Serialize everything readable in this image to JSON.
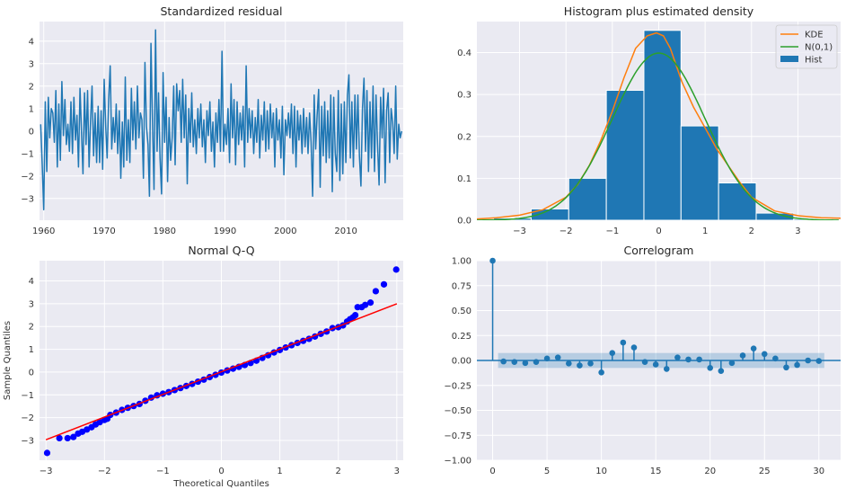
{
  "chart_data": [
    {
      "type": "line",
      "title": "Standardized residual",
      "xlabel": "",
      "ylabel": "",
      "xlim": [
        1959.3,
        2019.5
      ],
      "ylim": [
        -3.97,
        4.87
      ],
      "grid": true,
      "xticks": [
        1960,
        1970,
        1980,
        1990,
        2000,
        2010
      ],
      "xtick_labels": [
        "1960",
        "1970",
        "1980",
        "1990",
        "2000",
        "2010"
      ],
      "yticks": [
        -3,
        -2,
        -1,
        0,
        1,
        2,
        3,
        4
      ],
      "ytick_labels": [
        "−3",
        "−2",
        "−1",
        "0",
        "1",
        "2",
        "3",
        "4"
      ],
      "color": "#1f77b4",
      "quarterly_values_by_year": [
        {
          "year": 1960,
          "values": [
            0.3,
            -1.5,
            -3.5,
            1.3
          ]
        },
        {
          "year": 1961,
          "values": [
            -1.8,
            1.5,
            -0.3,
            1.0
          ]
        },
        {
          "year": 1962,
          "values": [
            0.8,
            -0.5,
            1.8,
            -1.6
          ]
        },
        {
          "year": 1963,
          "values": [
            1.2,
            -1.3,
            2.2,
            -0.2
          ]
        },
        {
          "year": 1964,
          "values": [
            1.4,
            -0.6,
            0.3,
            -0.9
          ]
        },
        {
          "year": 1965,
          "values": [
            1.3,
            -1.0,
            1.5,
            -0.4
          ]
        },
        {
          "year": 1966,
          "values": [
            0.7,
            -1.6,
            1.9,
            -0.1
          ]
        },
        {
          "year": 1967,
          "values": [
            -1.9,
            1.7,
            -0.6,
            1.8
          ]
        },
        {
          "year": 1968,
          "values": [
            -1.6,
            0.4,
            2.0,
            -1.1
          ]
        },
        {
          "year": 1969,
          "values": [
            0.8,
            -1.4,
            1.1,
            -1.4
          ]
        },
        {
          "year": 1970,
          "values": [
            0.9,
            -1.7,
            2.3,
            0.2
          ]
        },
        {
          "year": 1971,
          "values": [
            -1.2,
            1.4,
            2.9,
            -0.8
          ]
        },
        {
          "year": 1972,
          "values": [
            0.6,
            -0.5,
            1.2,
            -1.0
          ]
        },
        {
          "year": 1973,
          "values": [
            0.9,
            -2.1,
            0.4,
            -1.6
          ]
        },
        {
          "year": 1974,
          "values": [
            2.4,
            -1.3,
            0.5,
            -1.4
          ]
        },
        {
          "year": 1975,
          "values": [
            1.9,
            -0.4,
            1.3,
            -0.8
          ]
        },
        {
          "year": 1976,
          "values": [
            2.0,
            -0.3,
            0.8,
            0.5
          ]
        },
        {
          "year": 1977,
          "values": [
            -2.1,
            3.05,
            0.2,
            -0.6
          ]
        },
        {
          "year": 1978,
          "values": [
            -2.9,
            3.9,
            0.4,
            -2.6
          ]
        },
        {
          "year": 1979,
          "values": [
            4.5,
            -0.9,
            1.7,
            -1.2
          ]
        },
        {
          "year": 1980,
          "values": [
            -2.8,
            2.6,
            -0.5,
            1.5
          ]
        },
        {
          "year": 1981,
          "values": [
            -2.25,
            0.6,
            -1.3,
            -0.3
          ]
        },
        {
          "year": 1982,
          "values": [
            2.0,
            -1.5,
            2.1,
            0.9
          ]
        },
        {
          "year": 1983,
          "values": [
            1.8,
            -0.5,
            2.3,
            -0.3
          ]
        },
        {
          "year": 1984,
          "values": [
            1.6,
            -2.35,
            1.0,
            -0.5
          ]
        },
        {
          "year": 1985,
          "values": [
            1.7,
            -0.7,
            0.5,
            -1.0
          ]
        },
        {
          "year": 1986,
          "values": [
            1.0,
            -0.3,
            1.2,
            -0.7
          ]
        },
        {
          "year": 1987,
          "values": [
            0.5,
            -1.4,
            0.9,
            -0.2
          ]
        },
        {
          "year": 1988,
          "values": [
            1.3,
            -0.9,
            0.4,
            -1.6
          ]
        },
        {
          "year": 1989,
          "values": [
            0.8,
            -0.5,
            1.4,
            -0.9
          ]
        },
        {
          "year": 1990,
          "values": [
            3.55,
            -0.9,
            0.3,
            -0.6
          ]
        },
        {
          "year": 1991,
          "values": [
            1.0,
            -1.4,
            2.1,
            -0.3
          ]
        },
        {
          "year": 1992,
          "values": [
            1.4,
            -1.5,
            1.3,
            -0.6
          ]
        },
        {
          "year": 1993,
          "values": [
            0.8,
            -0.4,
            1.1,
            -1.6
          ]
        },
        {
          "year": 1994,
          "values": [
            2.9,
            -0.5,
            1.0,
            -0.3
          ]
        },
        {
          "year": 1995,
          "values": [
            0.9,
            -1.0,
            0.6,
            -0.5
          ]
        },
        {
          "year": 1996,
          "values": [
            1.4,
            -1.2,
            0.7,
            -0.4
          ]
        },
        {
          "year": 1997,
          "values": [
            1.3,
            -0.9,
            0.9,
            -0.8
          ]
        },
        {
          "year": 1998,
          "values": [
            1.2,
            -0.3,
            0.8,
            -1.6
          ]
        },
        {
          "year": 1999,
          "values": [
            1.0,
            -0.4,
            0.5,
            -1.2
          ]
        },
        {
          "year": 2000,
          "values": [
            1.1,
            -1.95,
            0.5,
            -0.2
          ]
        },
        {
          "year": 2001,
          "values": [
            0.8,
            -0.3,
            1.2,
            -1.0
          ]
        },
        {
          "year": 2002,
          "values": [
            1.1,
            -1.6,
            0.9,
            -0.4
          ]
        },
        {
          "year": 2003,
          "values": [
            0.7,
            -1.0,
            1.0,
            -0.7
          ]
        },
        {
          "year": 2004,
          "values": [
            0.6,
            -1.0,
            0.8,
            -0.5
          ]
        },
        {
          "year": 2005,
          "values": [
            -2.9,
            1.6,
            -0.8,
            0.7
          ]
        },
        {
          "year": 2006,
          "values": [
            1.85,
            -2.5,
            1.1,
            -1.1
          ]
        },
        {
          "year": 2007,
          "values": [
            1.3,
            -1.4,
            0.9,
            -1.2
          ]
        },
        {
          "year": 2008,
          "values": [
            1.6,
            -2.7,
            1.5,
            -1.0
          ]
        },
        {
          "year": 2009,
          "values": [
            -1.8,
            1.8,
            -2.2,
            1.2
          ]
        },
        {
          "year": 2010,
          "values": [
            -1.9,
            1.3,
            -1.4,
            1.6
          ]
        },
        {
          "year": 2011,
          "values": [
            2.5,
            -1.2,
            1.3,
            -1.6
          ]
        },
        {
          "year": 2012,
          "values": [
            1.6,
            -0.8,
            1.6,
            -1.1
          ]
        },
        {
          "year": 2013,
          "values": [
            -2.45,
            1.0,
            2.35,
            -0.9
          ]
        },
        {
          "year": 2014,
          "values": [
            1.8,
            -1.8,
            1.3,
            -1.2
          ]
        },
        {
          "year": 2015,
          "values": [
            2.0,
            -1.8,
            1.6,
            -0.6
          ]
        },
        {
          "year": 2016,
          "values": [
            -2.4,
            1.5,
            -0.3,
            1.9
          ]
        },
        {
          "year": 2017,
          "values": [
            -2.3,
            0.9,
            1.7,
            -1.4
          ]
        },
        {
          "year": 2018,
          "values": [
            1.0,
            0.4,
            -1.0,
            2.0
          ]
        },
        {
          "year": 2019,
          "values": [
            -1.25,
            0.3,
            -0.3,
            0.0
          ]
        }
      ]
    },
    {
      "type": "bar",
      "title": "Histogram plus estimated density",
      "xlabel": "",
      "ylabel": "",
      "xlim": [
        -3.92,
        3.92
      ],
      "ylim": [
        0,
        0.474
      ],
      "grid": true,
      "xticks": [
        -3,
        -2,
        -1,
        0,
        1,
        2,
        3
      ],
      "xtick_labels": [
        "−3",
        "−2",
        "−1",
        "0",
        "1",
        "2",
        "3"
      ],
      "yticks": [
        0,
        0.1,
        0.2,
        0.3,
        0.4
      ],
      "ytick_labels": [
        "0.0",
        "0.1",
        "0.2",
        "0.3",
        "0.4"
      ],
      "legend": {
        "position": "top-right",
        "entries": [
          "KDE",
          "N(0,1)",
          "Hist"
        ]
      },
      "hist": {
        "name": "Hist",
        "color": "#1f77b4",
        "bin_edges": [
          -3.56,
          -2.75,
          -1.94,
          -1.13,
          -0.32,
          0.48,
          1.29,
          2.1,
          2.91,
          3.72
        ],
        "heights": [
          0.005,
          0.027,
          0.1,
          0.31,
          0.453,
          0.225,
          0.089,
          0.017,
          0.003
        ]
      },
      "kde": {
        "name": "KDE",
        "color": "#ff7f0e",
        "x": [
          -3.92,
          -3.5,
          -3,
          -2.5,
          -2,
          -1.75,
          -1.5,
          -1.25,
          -1,
          -0.75,
          -0.5,
          -0.25,
          -0.05,
          0.1,
          0.25,
          0.5,
          0.75,
          1,
          1.25,
          1.5,
          1.75,
          2,
          2.5,
          3,
          3.5,
          3.92
        ],
        "y": [
          0.003,
          0.006,
          0.012,
          0.025,
          0.055,
          0.085,
          0.13,
          0.19,
          0.26,
          0.34,
          0.41,
          0.44,
          0.447,
          0.44,
          0.41,
          0.33,
          0.27,
          0.22,
          0.17,
          0.13,
          0.09,
          0.055,
          0.022,
          0.011,
          0.006,
          0.005
        ]
      },
      "normal": {
        "name": "N(0,1)",
        "color": "#2ca02c",
        "mean": 0,
        "sd": 1
      }
    },
    {
      "type": "scatter",
      "title": "Normal Q-Q",
      "xlabel": "Theoretical Quantiles",
      "ylabel": "Sample Quantiles",
      "xlim": [
        -3.11,
        3.11
      ],
      "ylim": [
        -3.87,
        4.89
      ],
      "grid": true,
      "xticks": [
        -3,
        -2,
        -1,
        0,
        1,
        2,
        3
      ],
      "xtick_labels": [
        "−3",
        "−2",
        "−1",
        "0",
        "1",
        "2",
        "3"
      ],
      "yticks": [
        -3,
        -2,
        -1,
        0,
        1,
        2,
        3,
        4
      ],
      "ytick_labels": [
        "−3",
        "−2",
        "−1",
        "0",
        "1",
        "2",
        "3",
        "4"
      ],
      "point_color": "#0000ff",
      "line_color": "#ff0000",
      "fit_line": [
        [
          -3,
          -2.97
        ],
        [
          3,
          3.0
        ]
      ],
      "points": [
        [
          -2.98,
          -3.55
        ],
        [
          -2.77,
          -2.9
        ],
        [
          -2.63,
          -2.9
        ],
        [
          -2.53,
          -2.85
        ],
        [
          -2.45,
          -2.7
        ],
        [
          -2.38,
          -2.62
        ],
        [
          -2.3,
          -2.52
        ],
        [
          -2.22,
          -2.42
        ],
        [
          -2.15,
          -2.3
        ],
        [
          -2.08,
          -2.2
        ],
        [
          -2.0,
          -2.1
        ],
        [
          -1.95,
          -2.05
        ],
        [
          -1.9,
          -1.88
        ],
        [
          -1.8,
          -1.78
        ],
        [
          -1.7,
          -1.66
        ],
        [
          -1.6,
          -1.57
        ],
        [
          -1.5,
          -1.49
        ],
        [
          -1.4,
          -1.4
        ],
        [
          -1.3,
          -1.26
        ],
        [
          -1.2,
          -1.12
        ],
        [
          -1.1,
          -1.02
        ],
        [
          -1.0,
          -0.95
        ],
        [
          -0.9,
          -0.88
        ],
        [
          -0.8,
          -0.79
        ],
        [
          -0.7,
          -0.7
        ],
        [
          -0.6,
          -0.61
        ],
        [
          -0.5,
          -0.52
        ],
        [
          -0.4,
          -0.42
        ],
        [
          -0.3,
          -0.33
        ],
        [
          -0.2,
          -0.22
        ],
        [
          -0.1,
          -0.12
        ],
        [
          0.0,
          -0.02
        ],
        [
          0.1,
          0.07
        ],
        [
          0.2,
          0.15
        ],
        [
          0.3,
          0.23
        ],
        [
          0.4,
          0.31
        ],
        [
          0.5,
          0.4
        ],
        [
          0.6,
          0.5
        ],
        [
          0.7,
          0.62
        ],
        [
          0.8,
          0.74
        ],
        [
          0.9,
          0.86
        ],
        [
          1.0,
          0.97
        ],
        [
          1.1,
          1.08
        ],
        [
          1.2,
          1.18
        ],
        [
          1.3,
          1.28
        ],
        [
          1.4,
          1.37
        ],
        [
          1.5,
          1.46
        ],
        [
          1.6,
          1.56
        ],
        [
          1.7,
          1.68
        ],
        [
          1.8,
          1.78
        ],
        [
          1.9,
          1.93
        ],
        [
          2.0,
          1.97
        ],
        [
          2.08,
          2.05
        ],
        [
          2.15,
          2.22
        ],
        [
          2.2,
          2.32
        ],
        [
          2.25,
          2.4
        ],
        [
          2.29,
          2.5
        ],
        [
          2.33,
          2.85
        ],
        [
          2.4,
          2.85
        ],
        [
          2.46,
          2.95
        ],
        [
          2.55,
          3.05
        ],
        [
          2.64,
          3.55
        ],
        [
          2.78,
          3.85
        ],
        [
          2.99,
          4.5
        ]
      ]
    },
    {
      "type": "stem",
      "title": "Correlogram",
      "xlabel": "",
      "ylabel": "",
      "xlim": [
        -1.45,
        32
      ],
      "ylim": [
        -1,
        1
      ],
      "grid": true,
      "xticks": [
        0,
        5,
        10,
        15,
        20,
        25,
        30
      ],
      "xtick_labels": [
        "0",
        "5",
        "10",
        "15",
        "20",
        "25",
        "30"
      ],
      "yticks": [
        -1,
        -0.75,
        -0.5,
        -0.25,
        0,
        0.25,
        0.5,
        0.75,
        1
      ],
      "ytick_labels": [
        "−1.00",
        "−0.75",
        "−0.50",
        "−0.25",
        "0.00",
        "0.25",
        "0.50",
        "0.75",
        "1.00"
      ],
      "color": "#1f77b4",
      "confidence_band": 0.075,
      "lags": [
        0,
        1,
        2,
        3,
        4,
        5,
        6,
        7,
        8,
        9,
        10,
        11,
        12,
        13,
        14,
        15,
        16,
        17,
        18,
        19,
        20,
        21,
        22,
        23,
        24,
        25,
        26,
        27,
        28,
        29,
        30
      ],
      "acf": [
        1.0,
        -0.01,
        -0.015,
        -0.025,
        -0.015,
        0.02,
        0.03,
        -0.03,
        -0.05,
        -0.03,
        -0.12,
        0.075,
        0.18,
        0.13,
        -0.015,
        -0.04,
        -0.085,
        0.03,
        0.01,
        0.01,
        -0.075,
        -0.105,
        -0.025,
        0.05,
        0.12,
        0.065,
        0.02,
        -0.07,
        -0.045,
        0.0,
        -0.005
      ]
    }
  ]
}
